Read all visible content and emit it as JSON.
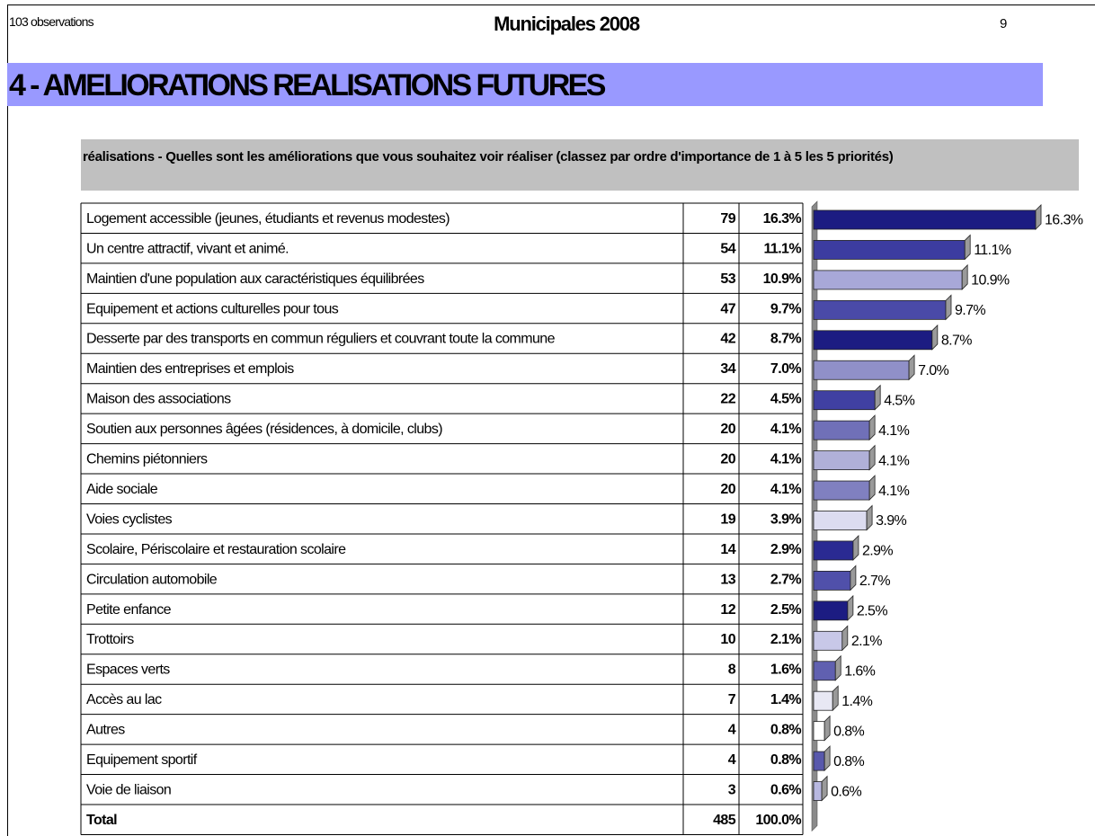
{
  "header": {
    "observations": "103 observations",
    "title": "Municipales 2008",
    "page": "9"
  },
  "section": "4 - AMELIORATIONS REALISATIONS FUTURES",
  "question": "réalisations - Quelles sont les améliorations que vous souhaitez voir réaliser  (classez par ordre d'importance de 1 à 5 les 5 priorités)",
  "chart_data": {
    "type": "bar",
    "categories": [
      "Logement accessible (jeunes, étudiants et revenus modestes)",
      "Un centre attractif, vivant et animé.",
      "Maintien d'une population aux caractéristiques équilibrées",
      "Equipement et actions culturelles pour tous",
      "Desserte par des transports en commun réguliers et couvrant toute la commune",
      "Maintien des entreprises et emplois",
      "Maison des associations",
      "Soutien aux personnes âgées (résidences, à domicile, clubs)",
      "Chemins piétonniers",
      "Aide sociale",
      "Voies cyclistes",
      "Scolaire, Périscolaire et restauration scolaire",
      "Circulation automobile",
      "Petite enfance",
      "Trottoirs",
      "Espaces verts",
      "Accès au lac",
      "Autres",
      "Equipement sportif",
      "Voie de liaison"
    ],
    "counts": [
      79,
      54,
      53,
      47,
      42,
      34,
      22,
      20,
      20,
      20,
      19,
      14,
      13,
      12,
      10,
      8,
      7,
      4,
      4,
      3
    ],
    "values": [
      16.3,
      11.1,
      10.9,
      9.7,
      8.7,
      7.0,
      4.5,
      4.1,
      4.1,
      4.1,
      3.9,
      2.9,
      2.7,
      2.5,
      2.1,
      1.6,
      1.4,
      0.8,
      0.8,
      0.6
    ],
    "value_labels": [
      "16.3%",
      "11.1%",
      "10.9%",
      "9.7%",
      "8.7%",
      "7.0%",
      "4.5%",
      "4.1%",
      "4.1%",
      "4.1%",
      "3.9%",
      "2.9%",
      "2.7%",
      "2.5%",
      "2.1%",
      "1.6%",
      "1.4%",
      "0.8%",
      "0.8%",
      "0.6%"
    ],
    "colors": [
      "#1c1c82",
      "#3c3ca0",
      "#a8a8d8",
      "#4a4aa8",
      "#1c1c82",
      "#9090c8",
      "#4040a2",
      "#7070b8",
      "#b0b0d8",
      "#8080c0",
      "#dcdcf0",
      "#2a2a92",
      "#5050aa",
      "#1c1c82",
      "#c8c8e8",
      "#6060b0",
      "#e8e8f4",
      "#ffffff",
      "#5858ac",
      "#b8b8e0"
    ],
    "total": {
      "label": "Total",
      "count": 485,
      "percent": "100.0%"
    }
  }
}
